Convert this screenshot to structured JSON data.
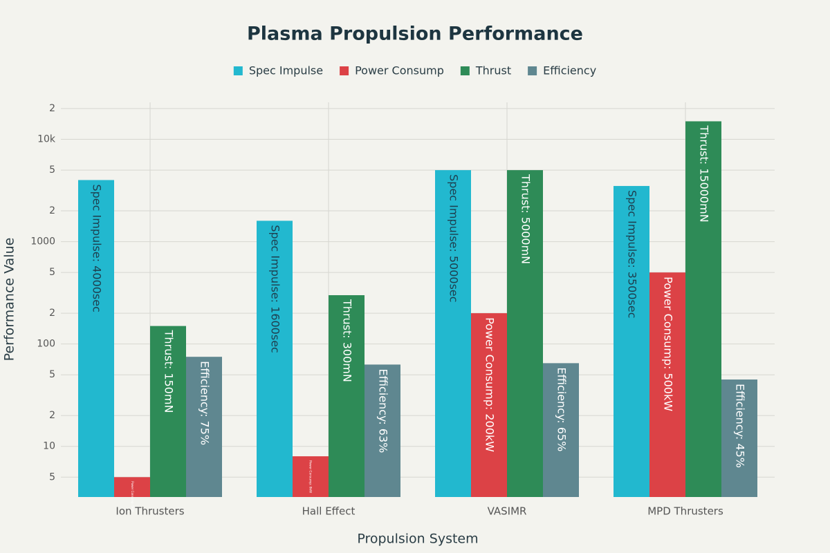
{
  "chart_data": {
    "type": "bar",
    "title": "Plasma Propulsion Performance",
    "x_label": "Propulsion System",
    "y_label": "Performance Value",
    "categories": [
      "Ion Thrusters",
      "Hall Effect",
      "VASIMR",
      "MPD Thrusters"
    ],
    "series": [
      {
        "name": "Spec Impulse",
        "color": "#22b8cf",
        "values": [
          4000,
          1600,
          5000,
          3500
        ],
        "value_labels": [
          "Spec Impulse: 4000sec",
          "Spec Impulse: 1600sec",
          "Spec Impulse: 5000sec",
          "Spec Impulse: 3500sec"
        ]
      },
      {
        "name": "Power Consump",
        "color": "#dc4246",
        "values": [
          5,
          8,
          200,
          500
        ],
        "value_labels": [
          "Power Consump: 5kW",
          "Power Consump: 8kW",
          "Power Consump: 200kW",
          "Power Consump: 500kW"
        ]
      },
      {
        "name": "Thrust",
        "color": "#2e8b57",
        "values": [
          150,
          300,
          5000,
          15000
        ],
        "value_labels": [
          "Thrust: 150mN",
          "Thrust: 300mN",
          "Thrust: 5000mN",
          "Thrust: 15000mN"
        ]
      },
      {
        "name": "Efficiency",
        "color": "#5f8790",
        "values": [
          75,
          63,
          65,
          45
        ],
        "value_labels": [
          "Efficiency: 75%",
          "Efficiency: 63%",
          "Efficiency: 65%",
          "Efficiency: 45%"
        ]
      }
    ],
    "log_scale": true,
    "ylim": [
      3.2,
      23000
    ],
    "yticks": [
      5,
      10,
      {
        "value": 20,
        "label": "2"
      },
      {
        "value": 50,
        "label": "5"
      },
      100,
      {
        "value": 200,
        "label": "2"
      },
      {
        "value": 500,
        "label": "5"
      },
      1000,
      {
        "value": 2000,
        "label": "2"
      },
      {
        "value": 5000,
        "label": "5"
      },
      {
        "value": 10000,
        "label": "10k"
      },
      {
        "value": 20000,
        "label": "2"
      }
    ],
    "grid": true,
    "legend": "top"
  }
}
